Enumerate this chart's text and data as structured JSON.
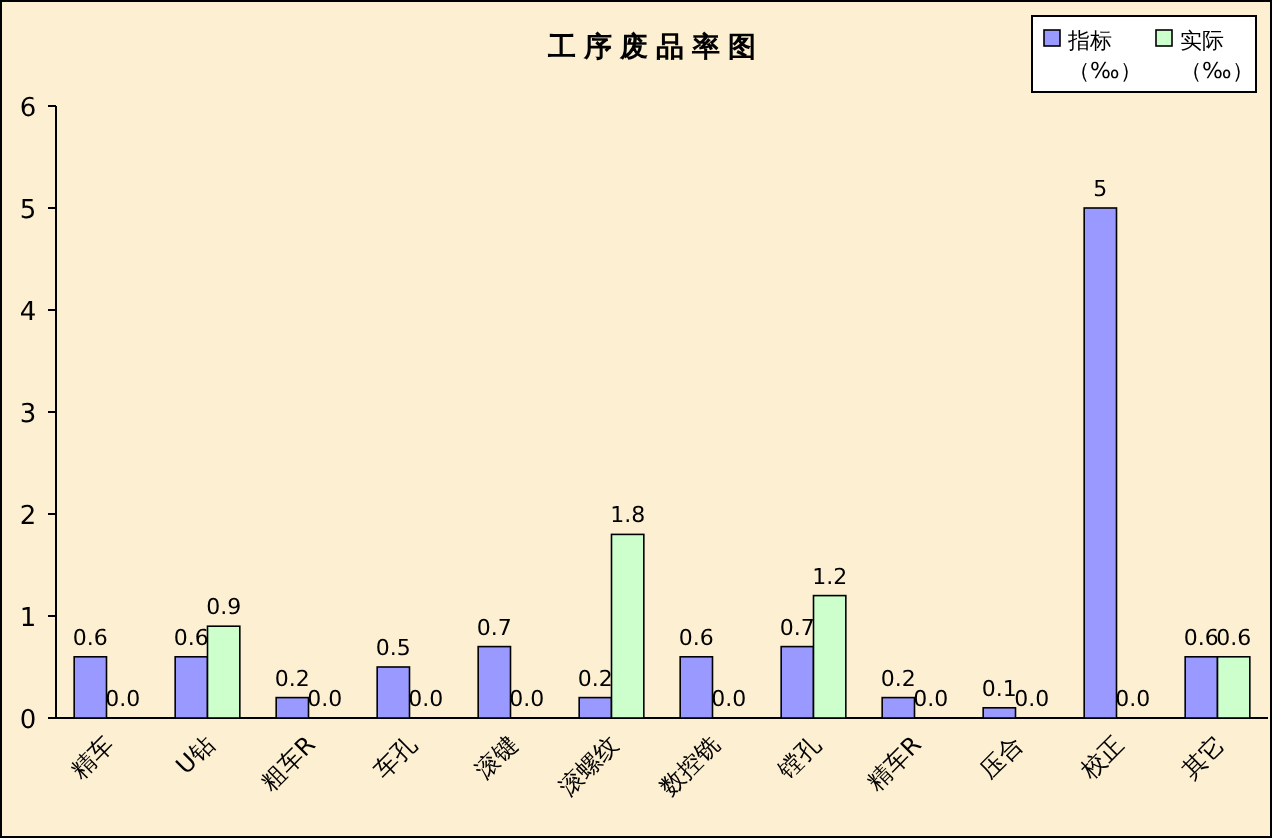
{
  "chart_data": {
    "type": "bar",
    "title": "工序废品率图",
    "categories": [
      "精车",
      "U钻",
      "粗车R",
      "车孔",
      "滚键",
      "滚螺纹",
      "数控铣",
      "镗孔",
      "精车R",
      "压合",
      "校正",
      "其它"
    ],
    "series": [
      {
        "name": "指标（‰）",
        "color": "#9999ff",
        "values": [
          0.6,
          0.6,
          0.2,
          0.5,
          0.7,
          0.2,
          0.6,
          0.7,
          0.2,
          0.1,
          5,
          0.6
        ],
        "value_labels": [
          "0.6",
          "0.6",
          "0.2",
          "0.5",
          "0.7",
          "0.2",
          "0.6",
          "0.7",
          "0.2",
          "0.1",
          "5",
          "0.6"
        ]
      },
      {
        "name": "实际（‰）",
        "color": "#ccffcc",
        "values": [
          0.0,
          0.9,
          0.0,
          0.0,
          0.0,
          1.8,
          0.0,
          1.2,
          0.0,
          0.0,
          0.0,
          0.6
        ],
        "value_labels": [
          "0.0",
          "0.9",
          "0.0",
          "0.0",
          "0.0",
          "1.8",
          "0.0",
          "1.2",
          "0.0",
          "0.0",
          "0.0",
          "0.6"
        ]
      }
    ],
    "ylim": [
      0,
      6
    ],
    "yticks": [
      0,
      1,
      2,
      3,
      4,
      5,
      6
    ],
    "grid": false,
    "legend": "top right"
  }
}
